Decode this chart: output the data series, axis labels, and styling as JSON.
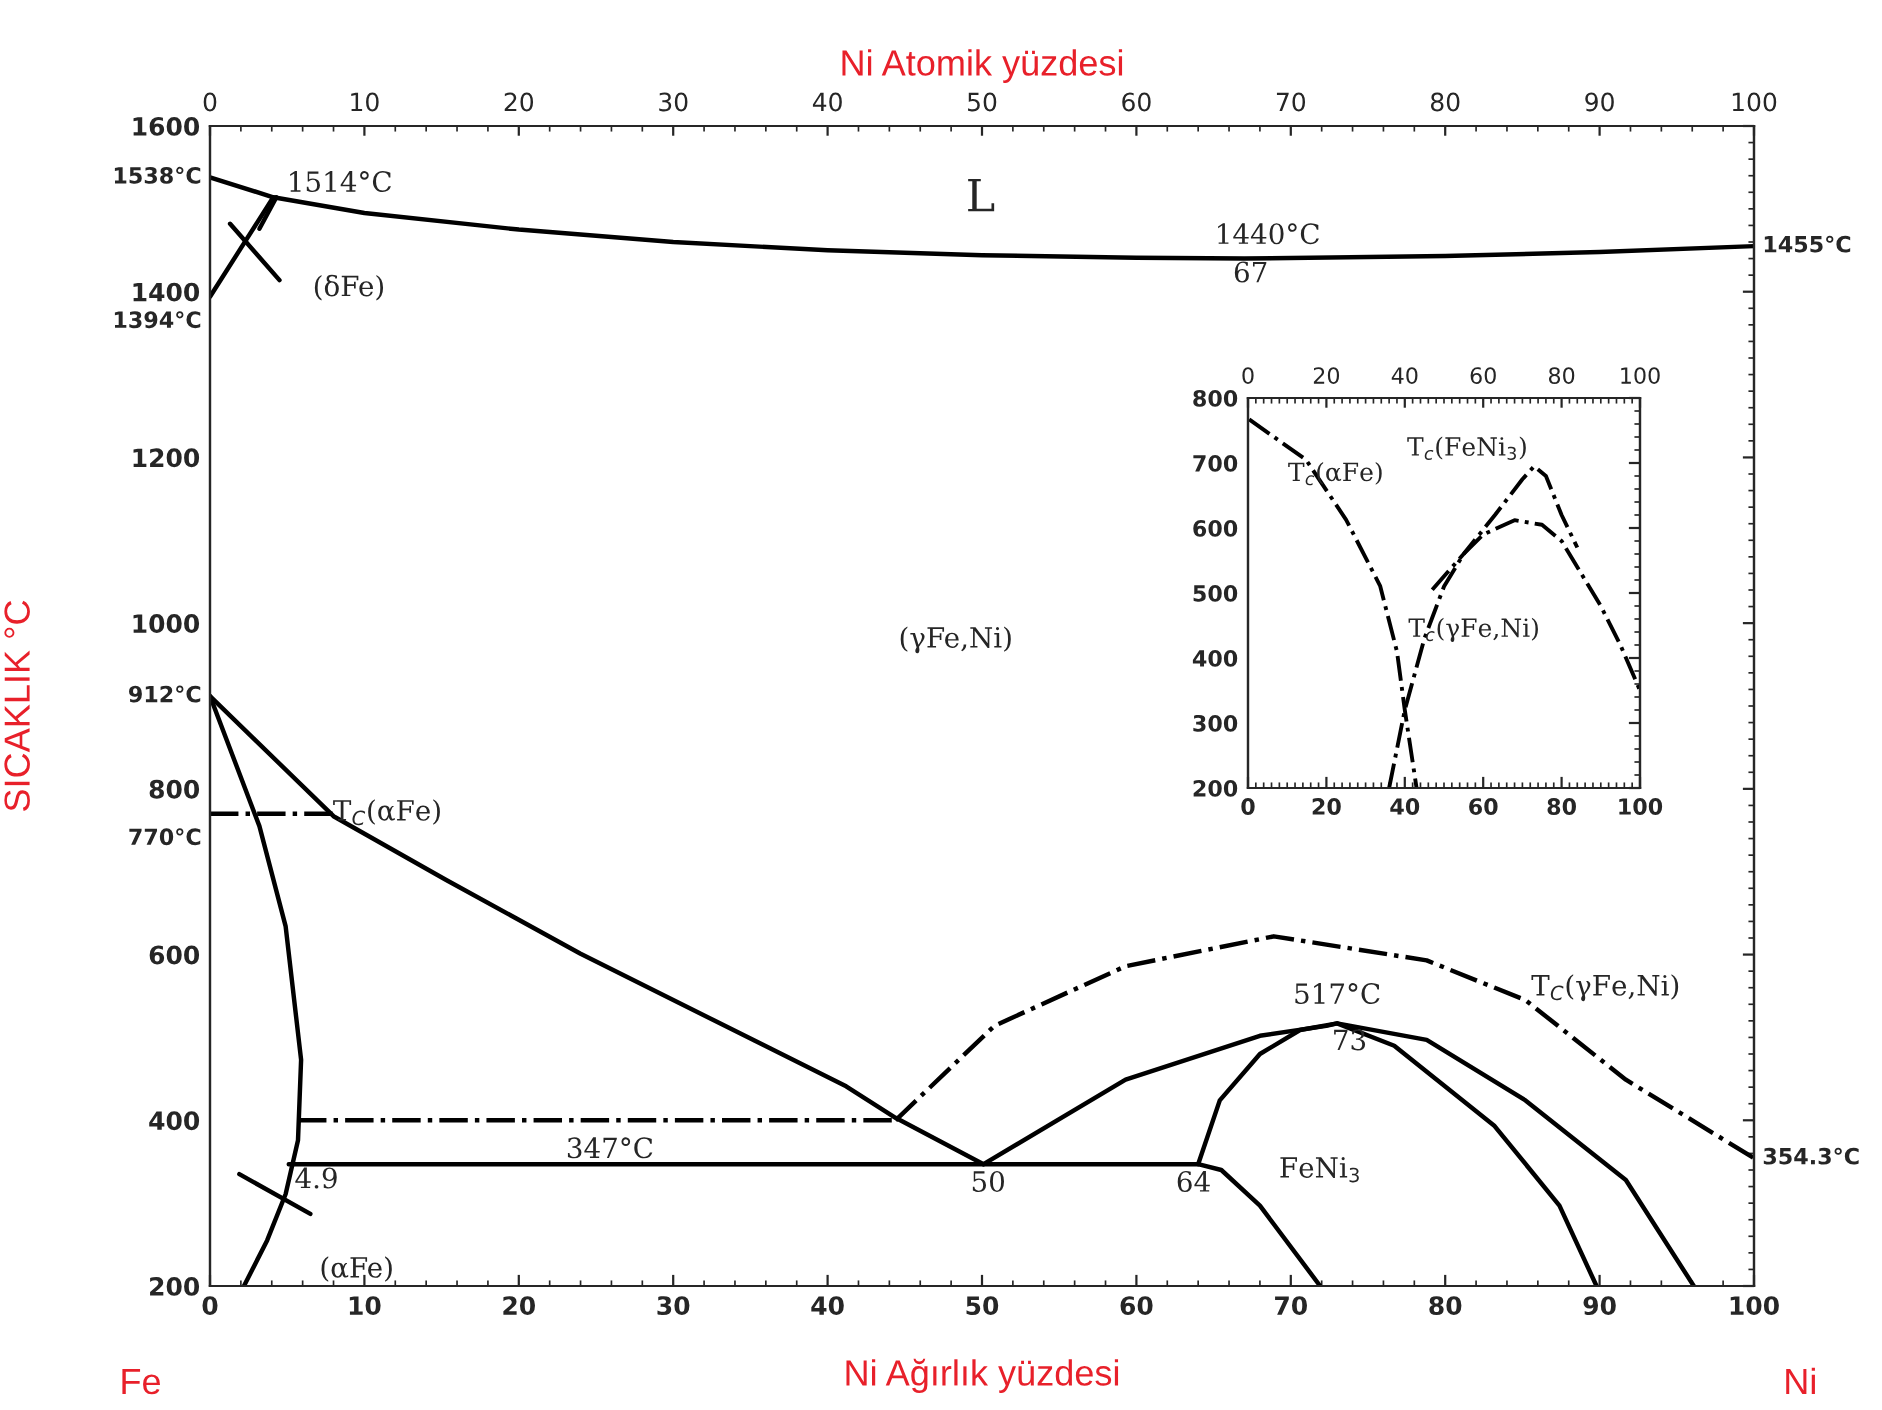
{
  "chart_data": [
    {
      "type": "line",
      "xlabel": "Ni Ağırlık yüzdesi",
      "x2label": "Ni Atomik yüzdesi",
      "ylabel": "SICAKLIK °C",
      "xlim": [
        0,
        100
      ],
      "xticks": [
        0,
        10,
        20,
        30,
        40,
        50,
        60,
        70,
        80,
        90,
        100
      ],
      "x2lim": [
        0,
        100
      ],
      "x2ticks": [
        0,
        10,
        20,
        30,
        40,
        50,
        60,
        70,
        80,
        90,
        100
      ],
      "ylim": [
        200,
        1600
      ],
      "yticks": [
        200,
        400,
        600,
        800,
        1000,
        1200,
        1400,
        1600
      ],
      "marker": "none",
      "grid": false,
      "series": [
        {
          "color": "#000000",
          "line_style": "solid",
          "x": [
            0,
            4.1,
            10,
            20,
            30,
            40,
            50,
            60,
            67,
            80,
            90,
            100
          ],
          "values": [
            1538,
            1514,
            1495,
            1475,
            1460,
            1450,
            1444,
            1441,
            1440,
            1443,
            1448,
            1455
          ]
        },
        {
          "color": "#000000",
          "line_style": "solid",
          "x": [
            0,
            4.1
          ],
          "values": [
            1394,
            1514
          ]
        },
        {
          "color": "#000000",
          "line_style": "solid",
          "x": [
            3.2,
            4.3
          ],
          "values": [
            1476,
            1514
          ]
        },
        {
          "color": "#000000",
          "line_style": "solid",
          "x": [
            1.3,
            4.5
          ],
          "values": [
            1482,
            1414
          ]
        },
        {
          "color": "#000000",
          "line_style": "solid",
          "x": [
            0,
            8.0,
            15.3,
            24.0,
            32.6,
            41.2,
            44.4,
            50.1
          ],
          "values": [
            912,
            767,
            690,
            601,
            521,
            441,
            403,
            347
          ]
        },
        {
          "color": "#000000",
          "line_style": "solid",
          "x": [
            0,
            3.2,
            4.9,
            5.9,
            5.7,
            4.9,
            3.7,
            2.2
          ],
          "values": [
            912,
            755,
            634,
            473,
            376,
            311,
            255,
            200
          ]
        },
        {
          "color": "#000000",
          "line_style": "dashdot",
          "x": [
            0,
            8.0
          ],
          "values": [
            770,
            770
          ]
        },
        {
          "color": "#000000",
          "line_style": "dashdot",
          "x": [
            5.7,
            44.4
          ],
          "values": [
            400,
            400
          ]
        },
        {
          "color": "#000000",
          "line_style": "dashdot",
          "x": [
            44.4,
            50.8,
            59.3,
            68.9,
            78.8,
            85.2,
            91.7,
            100
          ],
          "values": [
            400,
            514,
            586,
            622,
            593,
            545,
            449,
            354.3
          ]
        },
        {
          "color": "#000000",
          "line_style": "solid",
          "x": [
            5.1,
            64,
            65.5,
            68,
            71.9
          ],
          "values": [
            347,
            347,
            340,
            297,
            200
          ]
        },
        {
          "color": "#000000",
          "line_style": "solid",
          "x": [
            50.1,
            59.3,
            68,
            72.3,
            73,
            78.8,
            85.2,
            91.7,
            96.1
          ],
          "values": [
            347,
            449,
            502,
            514,
            517,
            497,
            424,
            328,
            200
          ]
        },
        {
          "color": "#000000",
          "line_style": "solid",
          "x": [
            64,
            65.4,
            68,
            70.6,
            73,
            76.7,
            83.2,
            87.4,
            89.8
          ],
          "values": [
            347,
            424,
            480,
            509,
            517,
            490,
            393,
            297,
            200
          ]
        },
        {
          "color": "#000000",
          "line_style": "solid",
          "x": [
            1.9,
            6.5
          ],
          "values": [
            335,
            287
          ]
        }
      ],
      "annotations": [
        "Fe",
        "Ni",
        "L",
        "1514°C",
        "1440°C",
        "67",
        "(δFe)",
        "(γFe,Ni)",
        "T$_{C}$(αFe)",
        "347°C",
        "4.9",
        "50",
        "64",
        "73",
        "FeNi$_{3}$",
        "T$_{C}$(γFe,Ni)",
        "(αFe)",
        {
          "text": "1538°C",
          "x": 0,
          "y": 1538
        },
        {
          "text": "1394°C",
          "x": 0,
          "y": 1394
        },
        {
          "text": "912°C",
          "x": 0,
          "y": 912
        },
        {
          "text": "770°C",
          "x": 0,
          "y": 770
        },
        {
          "text": "1455°C",
          "x": 100,
          "y": 1455
        },
        {
          "text": "354.3°C",
          "x": 100,
          "y": 354.3
        },
        {
          "text": "517°C",
          "x": 73,
          "y": 517
        }
      ]
    },
    {
      "type": "line",
      "xlim": [
        0,
        100
      ],
      "xticks": [
        0,
        20,
        40,
        60,
        80,
        100
      ],
      "x2lim": [
        0,
        100
      ],
      "x2ticks": [
        0,
        20,
        40,
        60,
        80,
        100
      ],
      "ylim": [
        200,
        800
      ],
      "yticks": [
        200,
        300,
        400,
        500,
        600,
        700,
        800
      ],
      "marker": "none",
      "grid": false,
      "series": [
        {
          "color": "#000000",
          "line_style": "dashdot",
          "x": [
            0.3,
            14.8,
            25,
            33.7,
            38,
            40,
            43
          ],
          "values": [
            767,
            705,
            613,
            511,
            410,
            320,
            200
          ]
        },
        {
          "color": "#000000",
          "line_style": "dashdot",
          "x": [
            36,
            40,
            45,
            50,
            55,
            60,
            68,
            75,
            80,
            85,
            90,
            95,
            100
          ],
          "values": [
            200,
            320,
            430,
            510,
            560,
            590,
            612,
            605,
            580,
            530,
            480,
            420,
            350
          ]
        },
        {
          "color": "#000000",
          "line_style": "dashdot",
          "x": [
            47,
            55,
            63,
            70,
            73,
            76,
            80,
            84
          ],
          "values": [
            505,
            560,
            620,
            675,
            695,
            680,
            620,
            570
          ]
        }
      ],
      "annotations": [
        "T$_{c}$(αFe)",
        "T$_{c}$(FeNi$_{3}$)",
        "T$_{c}$(γFe,Ni)"
      ]
    }
  ]
}
